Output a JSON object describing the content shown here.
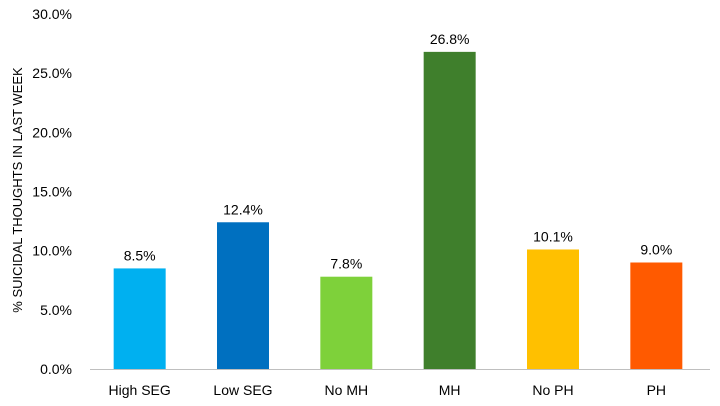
{
  "chart_data": {
    "type": "bar",
    "title": "",
    "xlabel": "",
    "ylabel": "% SUICIDAL THOUGHTS IN LAST WEEK",
    "ylim": [
      0,
      30
    ],
    "yticks": [
      0,
      5,
      10,
      15,
      20,
      25,
      30
    ],
    "ytick_labels": [
      "0.0%",
      "5.0%",
      "10.0%",
      "15.0%",
      "20.0%",
      "25.0%",
      "30.0%"
    ],
    "categories": [
      "High SEG",
      "Low SEG",
      "No MH",
      "MH",
      "No PH",
      "PH"
    ],
    "values": [
      8.5,
      12.4,
      7.8,
      26.8,
      10.1,
      9.0
    ],
    "data_labels": [
      "8.5%",
      "12.4%",
      "7.8%",
      "26.8%",
      "10.1%",
      "9.0%"
    ],
    "colors": [
      "#00B0F0",
      "#0070C0",
      "#7ED13A",
      "#3F7F2C",
      "#FFC000",
      "#FF5A00"
    ],
    "grid": false,
    "legend": "none"
  }
}
